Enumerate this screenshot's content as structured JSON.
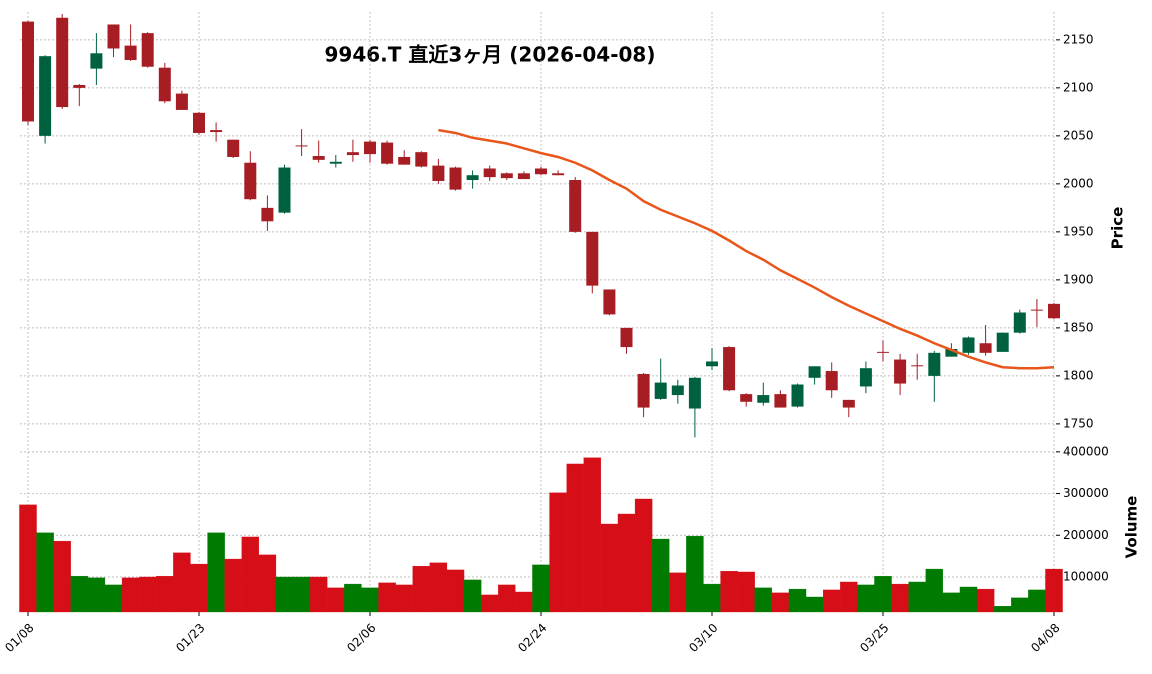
{
  "chart_data": {
    "type": "candlestick",
    "title": "9946.T  直近3ヶ月  (2026-04-08)",
    "categories": [
      "01/08",
      null,
      null,
      null,
      null,
      null,
      null,
      null,
      null,
      null,
      "01/23",
      null,
      null,
      null,
      null,
      null,
      null,
      null,
      null,
      null,
      "02/06",
      null,
      null,
      null,
      null,
      null,
      null,
      null,
      null,
      null,
      "02/24",
      null,
      null,
      null,
      null,
      null,
      null,
      null,
      null,
      null,
      "03/10",
      null,
      null,
      null,
      null,
      null,
      null,
      null,
      null,
      null,
      "03/25",
      null,
      null,
      null,
      null,
      null,
      null,
      null,
      null,
      null,
      "04/08"
    ],
    "open": [
      2169,
      2050,
      2173,
      2103,
      2120,
      2166,
      2144,
      2157,
      2121,
      2094,
      2074,
      2056,
      2046,
      2022,
      1975,
      1970,
      2040,
      2029,
      2021,
      2033,
      2044,
      2043,
      2028,
      2033,
      2019,
      2017,
      2004,
      2016,
      2011,
      2011,
      2016,
      2011,
      2004,
      1950,
      1890,
      1850,
      1802,
      1776,
      1780,
      1766,
      1810,
      1830,
      1781,
      1772,
      1781,
      1768,
      1798,
      1805,
      1775,
      1789,
      1825,
      1817,
      1811,
      1800,
      1820,
      1824,
      1834,
      1825,
      1845,
      1869,
      1875
    ],
    "high": [
      2170,
      2134,
      2177,
      2104,
      2157,
      2166,
      2166,
      2158,
      2126,
      2097,
      2075,
      2064,
      2046,
      2034,
      1988,
      2020,
      2057,
      2045,
      2030,
      2046,
      2046,
      2045,
      2035,
      2034,
      2026,
      2018,
      2014,
      2019,
      2012,
      2013,
      2018,
      2014,
      2007,
      1950,
      1890,
      1850,
      1803,
      1818,
      1796,
      1799,
      1829,
      1831,
      1782,
      1793,
      1785,
      1792,
      1810,
      1814,
      1775,
      1815,
      1837,
      1823,
      1823,
      1826,
      1834,
      1841,
      1853,
      1845,
      1869,
      1880,
      1876
    ],
    "low": [
      2061,
      2042,
      2078,
      2081,
      2103,
      2132,
      2128,
      2121,
      2084,
      2077,
      2051,
      2044,
      2027,
      1983,
      1951,
      1969,
      2029,
      2022,
      2017,
      2023,
      2022,
      2020,
      2020,
      2017,
      2000,
      1993,
      1995,
      2003,
      2004,
      2005,
      2009,
      2009,
      1949,
      1886,
      1863,
      1823,
      1757,
      1775,
      1771,
      1736,
      1806,
      1784,
      1768,
      1769,
      1767,
      1767,
      1791,
      1777,
      1757,
      1782,
      1815,
      1780,
      1796,
      1773,
      1820,
      1822,
      1821,
      1825,
      1844,
      1851,
      1859
    ],
    "close": [
      2065,
      2133,
      2080,
      2100,
      2136,
      2141,
      2129,
      2122,
      2086,
      2077,
      2053,
      2054,
      2028,
      1984,
      1961,
      2017,
      2039,
      2025,
      2023,
      2030,
      2031,
      2021,
      2020,
      2018,
      2003,
      1994,
      2009,
      2007,
      2006,
      2005,
      2010,
      2009,
      1950,
      1894,
      1864,
      1830,
      1767,
      1793,
      1790,
      1798,
      1815,
      1785,
      1773,
      1780,
      1767,
      1791,
      1810,
      1785,
      1767,
      1808,
      1824,
      1792,
      1810,
      1824,
      1828,
      1840,
      1824,
      1845,
      1866,
      1868,
      1860
    ],
    "up_color": "#00613f",
    "down_color": "#a61d24",
    "ma": {
      "color": "#e8561b",
      "values": [
        null,
        null,
        null,
        null,
        null,
        null,
        null,
        null,
        null,
        null,
        null,
        null,
        null,
        null,
        null,
        null,
        null,
        null,
        null,
        null,
        null,
        null,
        null,
        null,
        2056,
        2053,
        2048,
        2045,
        2042,
        2037,
        2032,
        2028,
        2022,
        2014,
        2004,
        1995,
        1982,
        1973,
        1966,
        1959,
        1951,
        1941,
        1930,
        1921,
        1910,
        1901,
        1892,
        1882,
        1873,
        1865,
        1857,
        1849,
        1842,
        1834,
        1827,
        1820,
        1814,
        1809,
        1808,
        1808,
        1809
      ]
    },
    "ylabel": "Price",
    "ylim": [
      1728,
      2179
    ],
    "yticks": [
      1750,
      1800,
      1850,
      1900,
      1950,
      2000,
      2050,
      2100,
      2150
    ],
    "grid": true,
    "volume": {
      "ylabel": "Volume",
      "up_color": "#007a00",
      "down_color": "#d50e17",
      "ylim": [
        16000,
        414000
      ],
      "yticks": [
        100000,
        200000,
        300000,
        400000
      ],
      "values": [
        273000,
        206000,
        186000,
        102000,
        98000,
        81000,
        98000,
        100000,
        102000,
        158000,
        131000,
        206000,
        143000,
        196000,
        153000,
        100000,
        100000,
        100000,
        74000,
        83000,
        74000,
        86000,
        81000,
        126000,
        134000,
        117000,
        93000,
        57000,
        81000,
        64000,
        129000,
        302000,
        371000,
        386000,
        227000,
        251000,
        287000,
        191000,
        110000,
        198000,
        83000,
        114000,
        112000,
        74000,
        62000,
        71000,
        52000,
        69000,
        88000,
        81000,
        102000,
        83000,
        88000,
        119000,
        62000,
        76000,
        71000,
        30000,
        50000,
        69000,
        119000
      ]
    }
  }
}
